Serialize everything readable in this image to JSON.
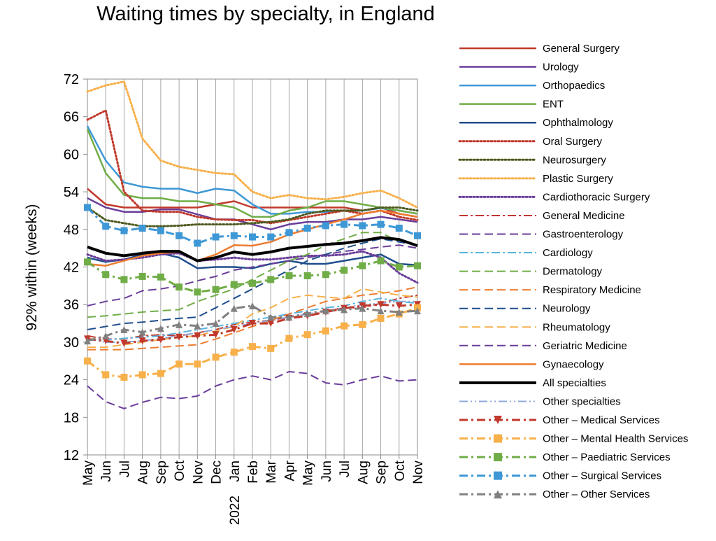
{
  "chart_data": {
    "type": "line",
    "title": "Waiting times by specialty, in England",
    "xlabel": "",
    "ylabel": "92% within (weeks)",
    "ylim": [
      12,
      72
    ],
    "yticks": [
      12,
      18,
      24,
      30,
      36,
      42,
      48,
      54,
      60,
      66,
      72
    ],
    "x_tick_labels": [
      "May",
      "Jun",
      "Jul",
      "Aug",
      "Sep",
      "Oct",
      "Nov",
      "Dec",
      "Jan",
      "Feb",
      "Mar",
      "Apr",
      "May",
      "Jun",
      "Jul",
      "Aug",
      "Sep",
      "Oct",
      "Nov"
    ],
    "year_label": "2022",
    "grid": "vertical",
    "legend_position": "right",
    "series": [
      {
        "name": "General  Surgery",
        "color": "#C0392B",
        "style": "solid",
        "values": [
          54.5,
          52,
          51.5,
          51.5,
          51.5,
          51.5,
          51.5,
          52,
          52.5,
          51.5,
          51.5,
          51.5,
          51.5,
          51.5,
          51.5,
          51,
          51.5,
          50.5,
          50
        ]
      },
      {
        "name": "Urology",
        "color": "#6A3D9A",
        "style": "solid",
        "values": [
          53,
          51.5,
          50.8,
          50.8,
          51.2,
          51.2,
          50.4,
          49.6,
          49.6,
          48.8,
          48,
          48.8,
          49.2,
          49.2,
          49.6,
          49.6,
          50,
          49.6,
          49.2
        ]
      },
      {
        "name": "Orthopaedics",
        "color": "#3E98D6",
        "style": "solid",
        "values": [
          64.5,
          59,
          55.5,
          54.8,
          54.5,
          54.5,
          53.8,
          54.5,
          54.2,
          52,
          50.5,
          50.5,
          50.8,
          50.8,
          51,
          51,
          51.4,
          51,
          50.5
        ]
      },
      {
        "name": "ENT",
        "color": "#70AD47",
        "style": "solid",
        "values": [
          64,
          57,
          53.5,
          53,
          53,
          52.5,
          52.5,
          52,
          51.5,
          50,
          50,
          51,
          51.5,
          52.5,
          52.5,
          52,
          51.5,
          51,
          50.5
        ]
      },
      {
        "name": "Ophthalmology",
        "color": "#1F4E8C",
        "style": "solid",
        "values": [
          43.5,
          42.8,
          43.2,
          44,
          44.2,
          43.5,
          41.8,
          42,
          42,
          41.8,
          42.5,
          43,
          42.5,
          42.5,
          43,
          43.5,
          44,
          42.5,
          42.3
        ]
      },
      {
        "name": "Oral  Surgery",
        "color": "#C0392B",
        "style": "dotted",
        "values": [
          65.5,
          67,
          54,
          51,
          50.8,
          50.8,
          50,
          49.6,
          49.5,
          49.5,
          49,
          49.5,
          50,
          50.5,
          51,
          50.5,
          51,
          50,
          49.5
        ]
      },
      {
        "name": "Neurosurgery",
        "color": "#4D5A1E",
        "style": "dotted",
        "values": [
          51.5,
          49.5,
          49,
          48.5,
          48.5,
          48.6,
          48.8,
          48.8,
          48.8,
          49,
          49.2,
          49.6,
          50.5,
          51,
          51,
          51,
          51.5,
          51.5,
          51
        ]
      },
      {
        "name": "Plastic  Surgery",
        "color": "#F7B04A",
        "style": "dotted",
        "values": [
          70,
          71,
          71.6,
          62.5,
          59,
          58,
          57.5,
          57,
          56.8,
          54,
          53,
          53.5,
          53,
          52.8,
          53.2,
          53.8,
          54.2,
          53,
          51.5
        ]
      },
      {
        "name": "Cardiothoracic  Surgery",
        "color": "#6A3D9A",
        "style": "dotted",
        "values": [
          44,
          43,
          43.2,
          43.5,
          44,
          44.2,
          43,
          43.2,
          43.5,
          43.2,
          43.2,
          43.5,
          43.8,
          43.8,
          44,
          44.5,
          43.5,
          41,
          39.5
        ]
      },
      {
        "name": "General  Medicine",
        "color": "#C0392B",
        "style": "dashdot",
        "values": [
          31,
          30.5,
          30.5,
          31,
          31.2,
          31,
          31.5,
          32,
          32.8,
          33.2,
          33.5,
          34,
          34.2,
          35,
          35.5,
          35.5,
          36.2,
          37,
          37.5
        ]
      },
      {
        "name": "Gastroenterology",
        "color": "#6A3D9A",
        "style": "dash",
        "values": [
          35.8,
          36.5,
          37,
          38.2,
          38.5,
          39,
          39.8,
          40.5,
          41.5,
          42,
          42.5,
          43,
          43.5,
          44,
          44.5,
          44.8,
          45.2,
          45.5,
          45
        ]
      },
      {
        "name": "Cardiology",
        "color": "#5AB4DE",
        "style": "dashdot",
        "values": [
          30.5,
          30.4,
          30.6,
          30.8,
          31,
          31.5,
          32,
          32.5,
          33,
          33.5,
          34,
          34.5,
          35,
          35.5,
          35.8,
          36.5,
          37,
          36.5,
          36.2
        ]
      },
      {
        "name": "Dermatology",
        "color": "#70AD47",
        "style": "dash",
        "values": [
          34,
          34.2,
          34.5,
          34.8,
          35,
          35.2,
          36.5,
          37.5,
          38.5,
          40,
          41.5,
          43,
          44,
          45.5,
          46.5,
          47.5,
          47.5,
          46,
          45.5
        ]
      },
      {
        "name": "Respiratory  Medicine",
        "color": "#ED7D31",
        "style": "dash",
        "values": [
          28.8,
          28.8,
          28.8,
          29,
          29.2,
          29.4,
          29.6,
          30.5,
          31.5,
          32.5,
          33.5,
          34.5,
          35.5,
          36.5,
          37,
          37.5,
          37.8,
          38.2,
          38.8
        ]
      },
      {
        "name": "Neurology",
        "color": "#1F4E8C",
        "style": "dash",
        "values": [
          32,
          32.5,
          33,
          33.2,
          33.5,
          33.8,
          34,
          35.5,
          37,
          38.5,
          40,
          41.5,
          43,
          44,
          45,
          45.8,
          46.5,
          46,
          45.5
        ]
      },
      {
        "name": "Rheumatology",
        "color": "#F7B04A",
        "style": "dash",
        "values": [
          29.2,
          29.2,
          29.6,
          30,
          30.4,
          30.8,
          31,
          31.8,
          32.5,
          34.5,
          35.5,
          37,
          37.5,
          37.2,
          37,
          38.5,
          38,
          37.5,
          37.2
        ]
      },
      {
        "name": "Geriatric  Medicine",
        "color": "#6A3D9A",
        "style": "dash",
        "values": [
          23,
          20.5,
          19.4,
          20.4,
          21.2,
          21,
          21.4,
          23,
          24,
          24.6,
          24,
          25.3,
          25,
          23.5,
          23.2,
          24,
          24.6,
          23.8,
          24
        ]
      },
      {
        "name": "Gynaecology",
        "color": "#ED7D31",
        "style": "solid",
        "values": [
          42.5,
          42.2,
          43,
          43.8,
          44.2,
          44.4,
          43,
          44,
          45.5,
          45.4,
          46,
          47.2,
          48,
          48.8,
          49.6,
          50.5,
          51,
          50.5,
          50
        ]
      },
      {
        "name": "All  specialties",
        "color": "#000000",
        "style": "solid-thick",
        "values": [
          45.2,
          44.2,
          43.8,
          44.2,
          44.5,
          44.5,
          43,
          43.5,
          44.4,
          44,
          44.4,
          45,
          45.3,
          45.6,
          45.8,
          46.2,
          46.7,
          46.4,
          45.4
        ]
      },
      {
        "name": "Other  specialties",
        "color": "#8EA8DB",
        "style": "dashdotdot",
        "values": [
          30.5,
          30,
          30,
          30.2,
          30.6,
          31,
          31.5,
          32,
          32.5,
          33,
          33.5,
          34,
          34.5,
          35,
          35.5,
          36,
          36.2,
          36.5,
          36.5
        ]
      },
      {
        "name": "Other  –  Medical  Services",
        "color": "#C0392B",
        "style": "dashdot-marker",
        "marker": "triangle-down",
        "values": [
          30.5,
          30.2,
          29.8,
          30.2,
          30.4,
          30.8,
          31,
          31.2,
          32,
          33,
          33,
          33.8,
          34.2,
          34.8,
          35.4,
          35.8,
          36,
          35.8,
          36
        ]
      },
      {
        "name": "Other  –  Mental  Health  Services",
        "color": "#F7B04A",
        "style": "dashdot-marker",
        "marker": "square",
        "values": [
          27,
          24.8,
          24.4,
          24.8,
          25,
          26.5,
          26.5,
          27.6,
          28.4,
          29.3,
          29,
          30.6,
          31.2,
          31.8,
          32.6,
          32.8,
          33.8,
          34.5,
          35.5
        ]
      },
      {
        "name": "Other  –  Paediatric  Services",
        "color": "#70AD47",
        "style": "dashdot-marker",
        "marker": "square",
        "values": [
          42.8,
          40.8,
          40,
          40.5,
          40.4,
          38.8,
          38,
          38.4,
          39.2,
          39.4,
          40,
          40.6,
          40.6,
          40.8,
          41.5,
          42.2,
          43,
          42,
          42.2
        ]
      },
      {
        "name": "Other  –  Surgical  Services",
        "color": "#3E98D6",
        "style": "dashdot-marker",
        "marker": "square",
        "values": [
          51.5,
          48.5,
          47.8,
          48.2,
          47.8,
          47,
          45.8,
          46.8,
          47,
          46.8,
          46.8,
          47.5,
          48.2,
          48.6,
          48.8,
          48.6,
          48.8,
          48.2,
          47
        ]
      },
      {
        "name": "Other  –  Other  Services",
        "color": "#808080",
        "style": "dashdot-marker",
        "marker": "triangle-up",
        "values": [
          30.2,
          31,
          32,
          31.6,
          32.2,
          32.8,
          32.6,
          33,
          35.4,
          35.8,
          34,
          34,
          34.6,
          35,
          35.2,
          35.4,
          35,
          34.8,
          35
        ]
      }
    ]
  }
}
